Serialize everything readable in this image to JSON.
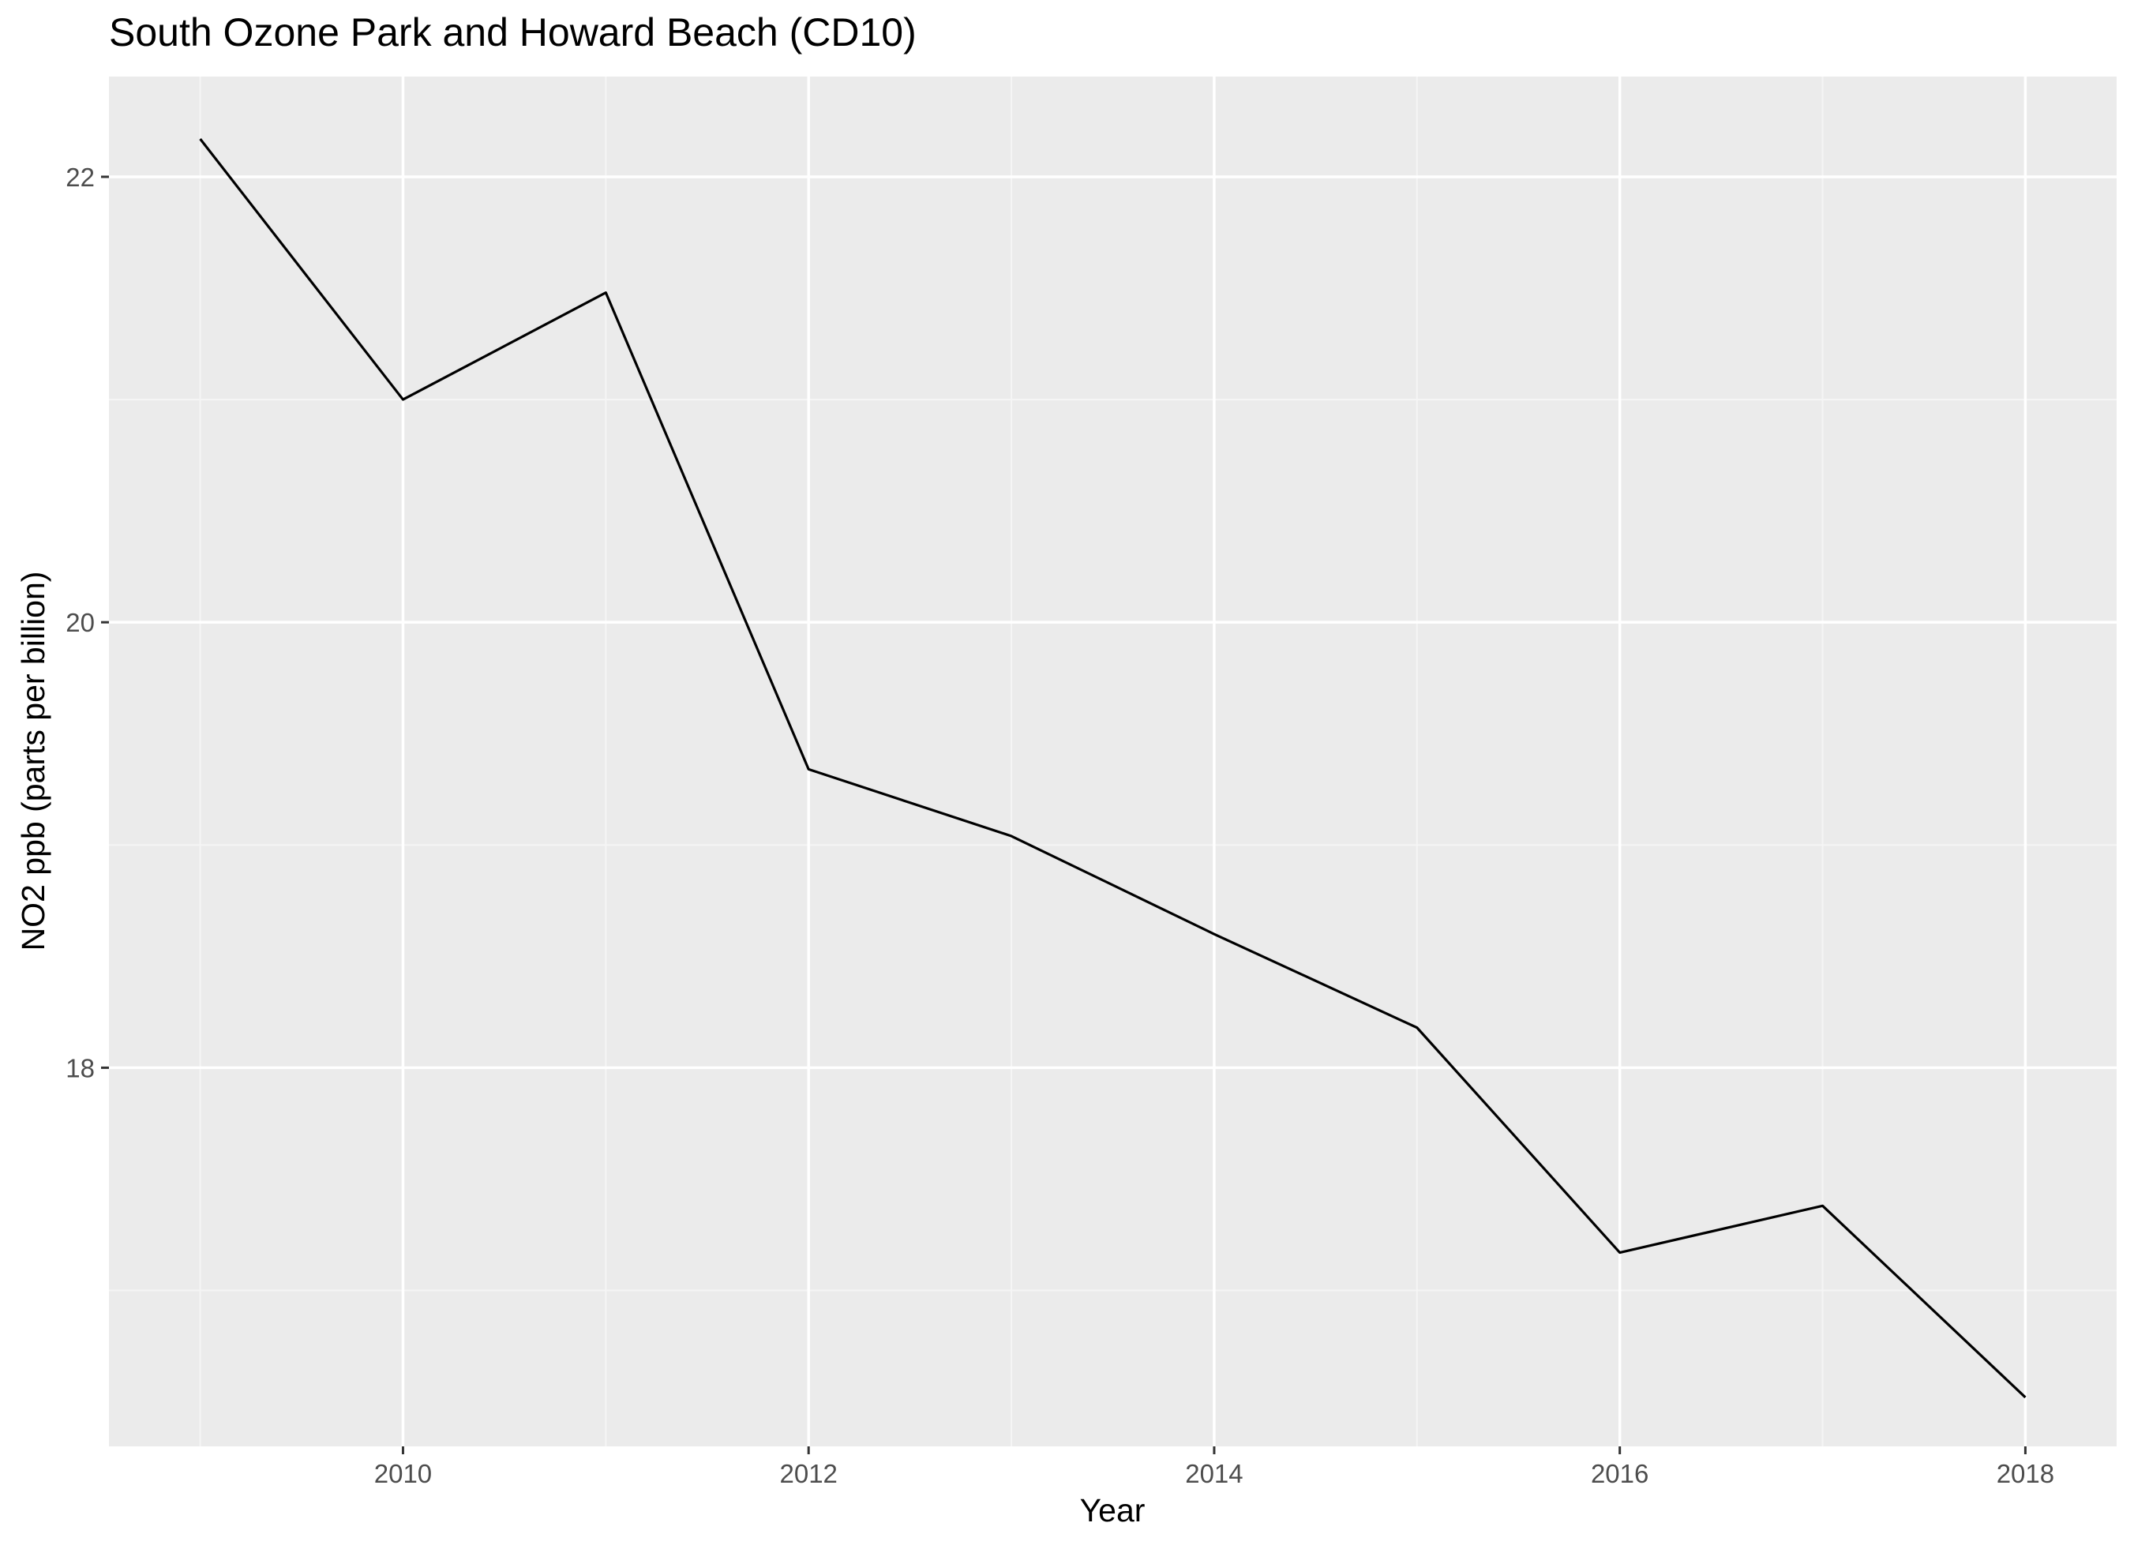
{
  "chart_data": {
    "type": "line",
    "title": "South Ozone Park and Howard Beach (CD10)",
    "xlabel": "Year",
    "ylabel": "NO2 ppb (parts per billion)",
    "x": [
      2009,
      2010,
      2011,
      2012,
      2013,
      2014,
      2015,
      2016,
      2017,
      2018
    ],
    "series": [
      {
        "values": [
          22.17,
          21.0,
          21.48,
          19.34,
          19.04,
          18.6,
          18.18,
          17.17,
          17.38,
          16.52
        ]
      }
    ],
    "xlim": [
      2008.55,
      2018.45
    ],
    "ylim": [
      16.3,
      22.45
    ],
    "x_ticks": [
      2010,
      2012,
      2014,
      2016,
      2018
    ],
    "x_tick_labels": [
      "2010",
      "2012",
      "2014",
      "2016",
      "2018"
    ],
    "y_ticks": [
      18,
      20,
      22
    ],
    "y_tick_labels": [
      "18",
      "20",
      "22"
    ],
    "grid": true,
    "legend": "none",
    "colors": {
      "panel_background": "#ebebeb",
      "grid_major": "#ffffff",
      "grid_minor": "#f5f5f5",
      "line": "#000000",
      "tick_text": "#4d4d4d",
      "tick_mark": "#333333"
    }
  }
}
